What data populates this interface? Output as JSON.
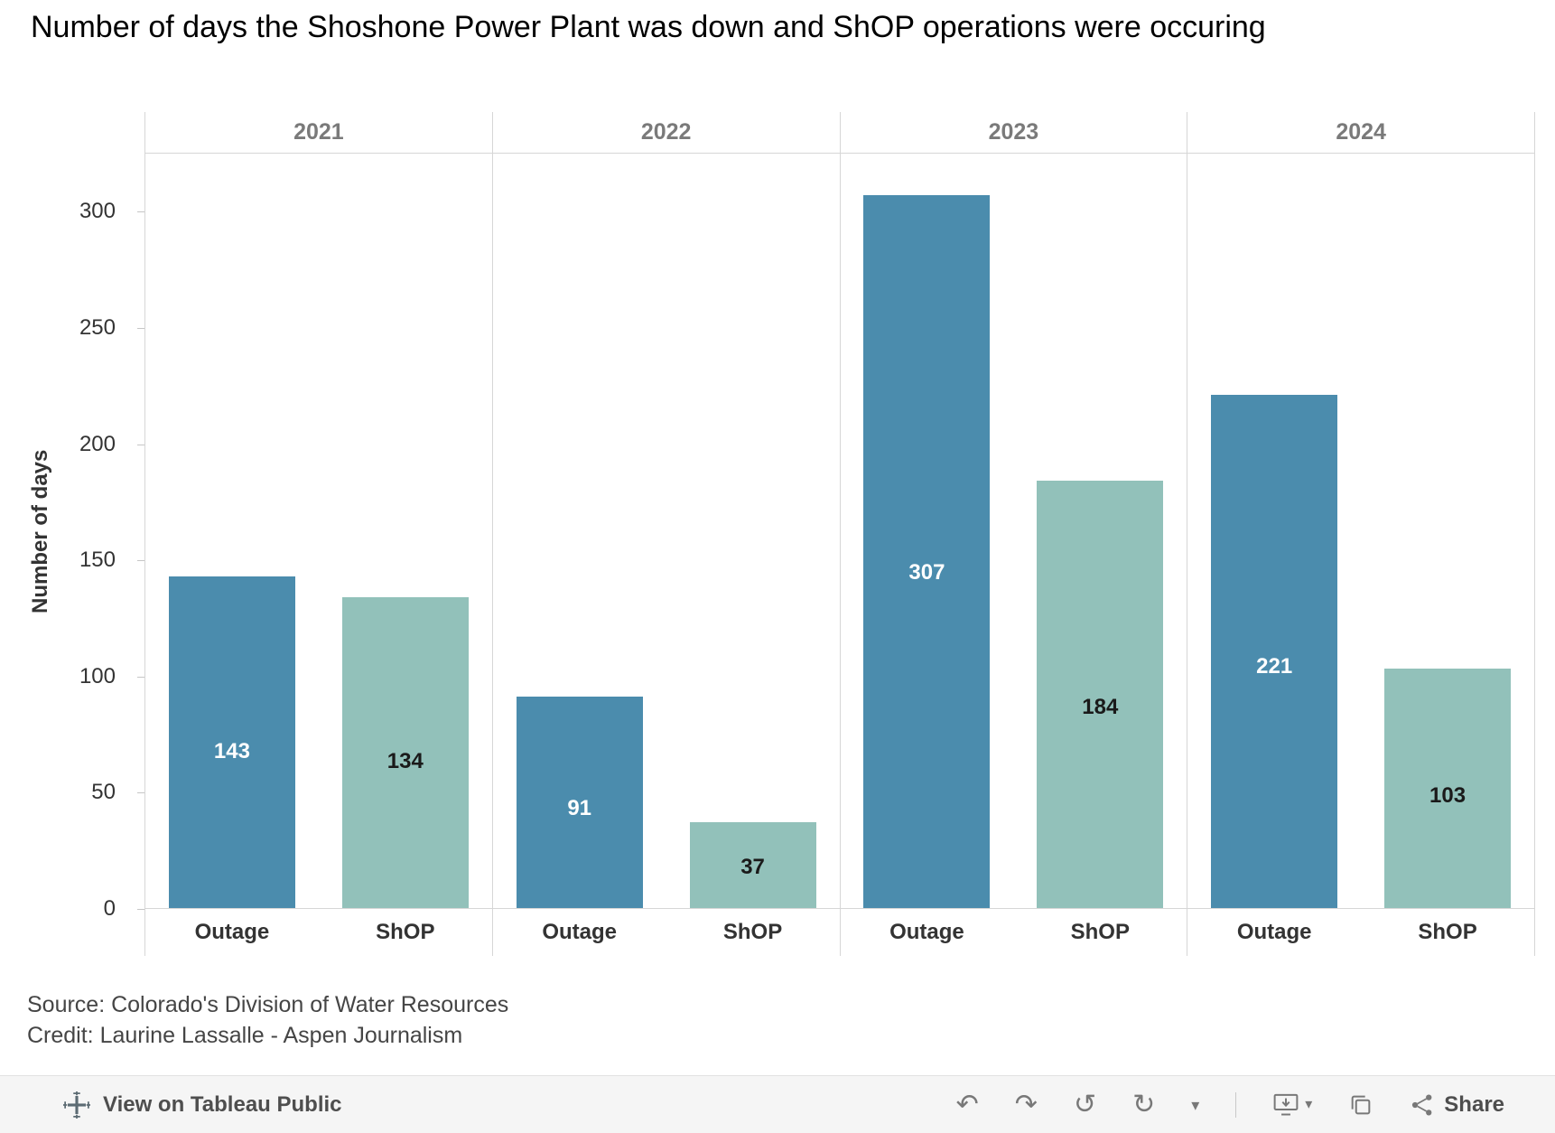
{
  "title": "Number of days the Shoshone Power Plant was down and ShOP operations were occuring",
  "source_line": "Source: Colorado's Division of Water Resources",
  "credit_line": "Credit: Laurine Lassalle - Aspen Journalism",
  "colors": {
    "outage": "#4b8cad",
    "shop": "#92c1ba",
    "outage_label": "#ffffff",
    "shop_label": "#1a1a1a",
    "axis_line": "#d6d6d6"
  },
  "toolbar": {
    "view_label": "View on Tableau Public",
    "share_label": "Share",
    "icons": {
      "undo": "↶",
      "redo": "↷",
      "revert": "↺",
      "refresh": "↻",
      "caret": "▾"
    }
  },
  "chart_data": {
    "type": "bar",
    "title": "Number of days the Shoshone Power Plant was down and ShOP operations were occuring",
    "categories": [
      "2021",
      "2022",
      "2023",
      "2024"
    ],
    "series": [
      {
        "name": "Outage",
        "values": [
          143,
          91,
          307,
          221
        ]
      },
      {
        "name": "ShOP",
        "values": [
          134,
          37,
          184,
          103
        ]
      }
    ],
    "bar_labels": [
      "Outage",
      "ShOP"
    ],
    "ylabel": "Number of days",
    "yticks": [
      0,
      50,
      100,
      150,
      200,
      250,
      300
    ],
    "ylim": [
      0,
      325
    ],
    "grid": false,
    "legend": "none"
  }
}
